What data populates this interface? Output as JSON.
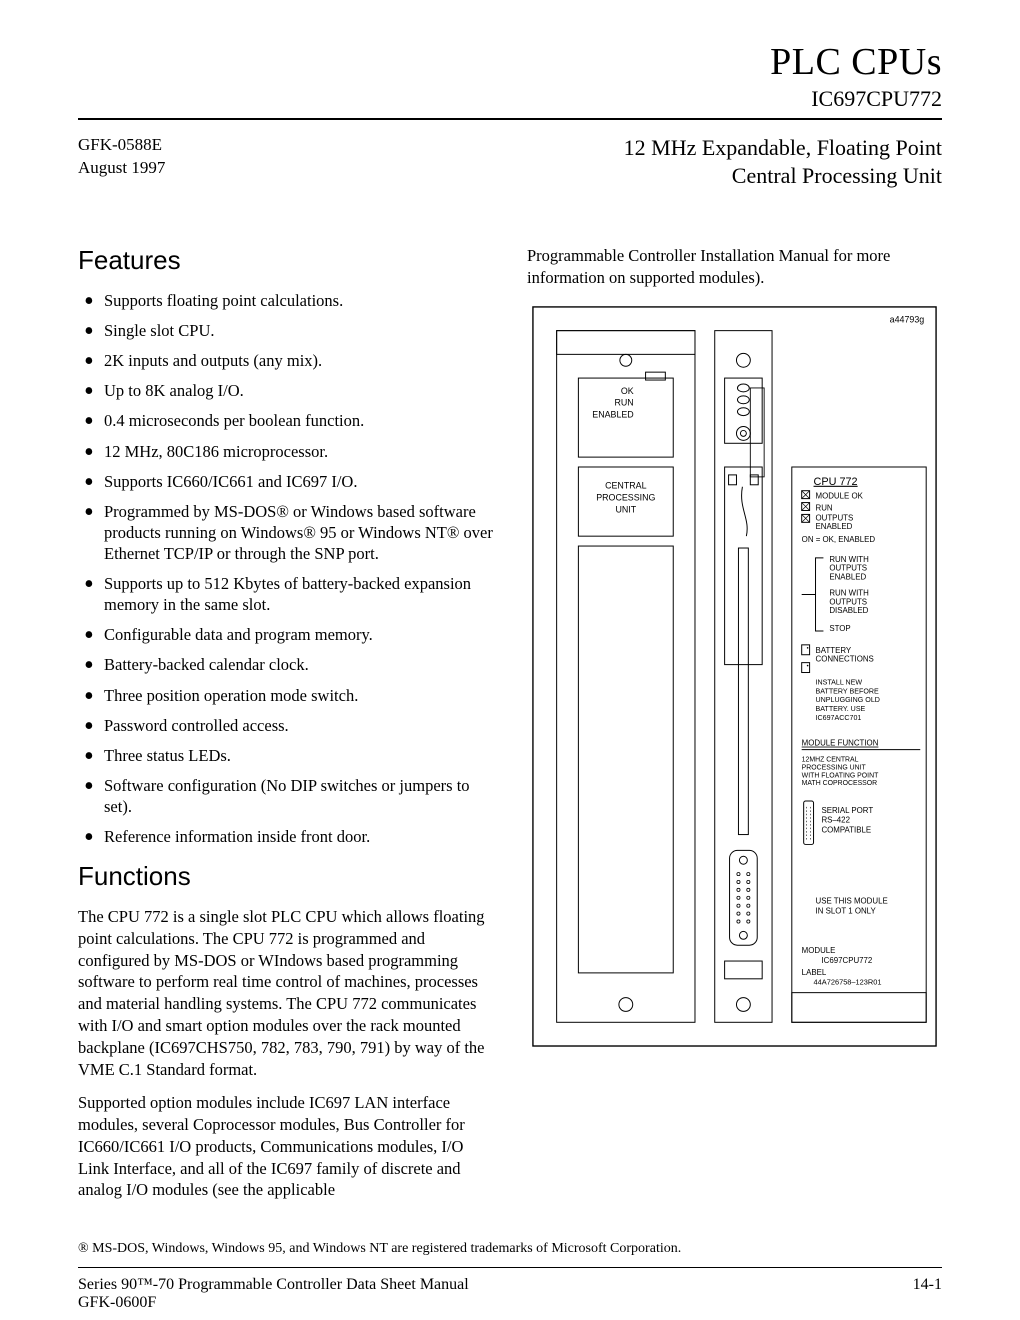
{
  "header": {
    "title": "PLC CPUs",
    "part": "IC697CPU772",
    "doc_ref": "GFK-0588E",
    "date": "August 1997",
    "subtitle_line1": "12 MHz Expandable, Floating Point",
    "subtitle_line2": "Central Processing Unit"
  },
  "sections": {
    "features_heading": "Features",
    "functions_heading": "Functions"
  },
  "features": [
    "Supports floating point calculations.",
    "Single slot CPU.",
    "2K inputs and outputs (any mix).",
    "Up to 8K analog I/O.",
    "0.4 microseconds per boolean function.",
    "12 MHz, 80C186 microprocessor.",
    "Supports IC660/IC661 and IC697 I/O.",
    "Programmed by MS-DOS® or Windows based software products running on Windows® 95 or Windows NT® over Ethernet TCP/IP or through the SNP port.",
    "Supports up to 512 Kbytes of battery-backed expansion memory in the same slot.",
    "Configurable data and program memory.",
    "Battery-backed calendar clock.",
    "Three position operation mode switch.",
    "Password controlled access.",
    "Three status LEDs.",
    "Software configuration (No DIP switches or jumpers to set).",
    "Reference information inside front door."
  ],
  "functions_paragraphs": [
    "The CPU 772 is a single slot PLC CPU which allows floating point calculations.  The CPU 772 is programmed and  configured by MS-DOS or WIndows based programming software to perform real time control of machines, processes and material handling systems.  The CPU 772 communicates with I/O and smart option modules over the rack mounted backplane (IC697CHS750, 782, 783, 790, 791) by way of the VME C.1 Standard format.",
    "Supported option modules include IC697 LAN interface modules, several Coprocessor modules, Bus Controller for IC660/IC661 I/O products, Communications modules, I/O Link Interface, and all of the IC697 family of discrete and analog I/O modules (see the applicable"
  ],
  "right_intro": "Programmable Controller Installation Manual for more information on supported modules).",
  "diagram": {
    "figure_id": "a44793g",
    "front_labels": {
      "ok": "OK",
      "run": "RUN",
      "enabled": "ENABLED",
      "unit_l1": "CENTRAL",
      "unit_l2": "PROCESSING",
      "unit_l3": "UNIT"
    },
    "side": {
      "title": "CPU 772",
      "led1": "MODULE OK",
      "led2": "RUN",
      "led3_a": "OUTPUTS",
      "led3_b": "ENABLED",
      "on_note": "ON = OK, ENABLED",
      "sw1a": "RUN WITH",
      "sw1b": "OUTPUTS",
      "sw1c": "ENABLED",
      "sw2a": "RUN WITH",
      "sw2b": "OUTPUTS",
      "sw2c": "DISABLED",
      "sw3": "STOP",
      "batt_a": "BATTERY",
      "batt_b": "CONNECTIONS",
      "inst1": "INSTALL NEW",
      "inst2": "BATTERY BEFORE",
      "inst3": "UNPLUGGING OLD",
      "inst4": "BATTERY. USE",
      "inst5": "IC697ACC701",
      "mf_hdr": "MODULE FUNCTION",
      "mf1": "12MHZ CENTRAL",
      "mf2": "PROCESSING UNIT",
      "mf3": "WITH FLOATING POINT",
      "mf4": "MATH  COPROCESSOR",
      "sp1": "SERIAL PORT",
      "sp2": "RS–422",
      "sp3": "COMPATIBLE",
      "slot1": "USE THIS MODULE",
      "slot2": "IN SLOT 1 ONLY",
      "mod_hdr": "MODULE",
      "mod_pn": "IC697CPU772",
      "lbl_hdr": "LABEL",
      "lbl_pn": "44A726758–123R01"
    }
  },
  "footnote": "®  MS-DOS, Windows, Windows 95, and Windows NT are registered trademarks of Microsoft Corporation.",
  "footer": {
    "left_line1": "Series 90™-70  Programmable Controller Data Sheet Manual",
    "left_line2": "GFK-0600F",
    "page": "14-1"
  },
  "style": {
    "stroke": "#000000",
    "thin": 1,
    "med": 1.4
  }
}
